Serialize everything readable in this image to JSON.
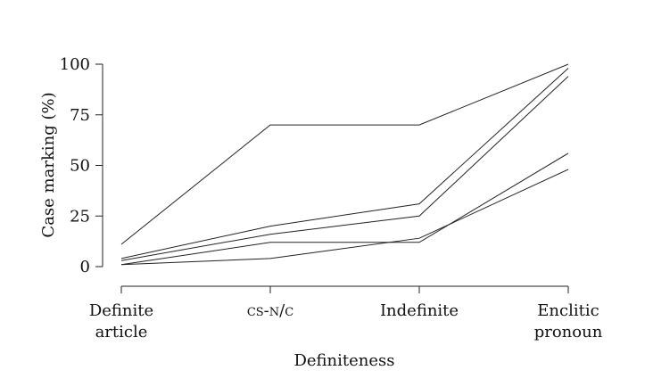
{
  "chart_data": {
    "type": "line",
    "title": "",
    "xlabel": "Definiteness",
    "ylabel": "Case marking (%)",
    "categories": [
      [
        "Definite",
        "article"
      ],
      [
        "CS-N/C"
      ],
      [
        "Indefinite"
      ],
      [
        "Enclitic",
        "pronoun"
      ]
    ],
    "yticks": [
      0,
      25,
      50,
      75,
      100
    ],
    "ylim": [
      0,
      100
    ],
    "grid": false,
    "legend": "none",
    "series": [
      {
        "values": [
          11,
          70,
          70,
          100
        ]
      },
      {
        "values": [
          4,
          20,
          31,
          98
        ]
      },
      {
        "values": [
          3,
          16,
          25,
          94
        ]
      },
      {
        "values": [
          1,
          12,
          12,
          56
        ]
      },
      {
        "values": [
          1,
          4,
          14,
          48
        ]
      }
    ],
    "colors": {
      "line": "#222222",
      "text": "#111111"
    }
  }
}
